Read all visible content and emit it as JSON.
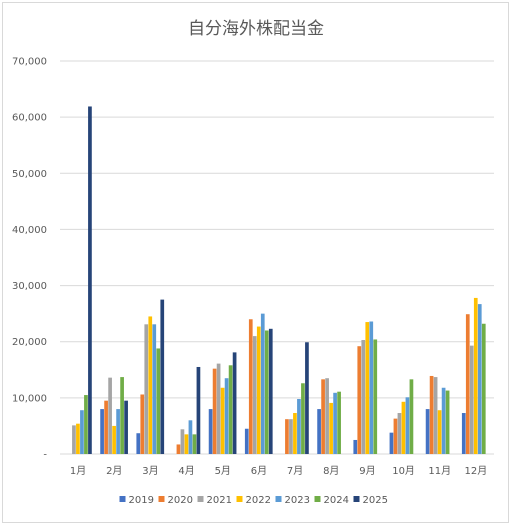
{
  "chart_data": {
    "type": "bar",
    "title": "自分海外株配当金",
    "xlabel": "",
    "ylabel": "",
    "ylim": [
      0,
      70000
    ],
    "yticks": [
      0,
      10000,
      20000,
      30000,
      40000,
      50000,
      60000,
      70000
    ],
    "ytick_labels": [
      "-",
      "10,000",
      "20,000",
      "30,000",
      "40,000",
      "50,000",
      "60,000",
      "70,000"
    ],
    "grid": true,
    "legend_position": "bottom",
    "categories": [
      "1月",
      "2月",
      "3月",
      "4月",
      "5月",
      "6月",
      "7月",
      "8月",
      "9月",
      "10月",
      "11月",
      "12月"
    ],
    "series": [
      {
        "name": "2019",
        "color": "#4472c4",
        "values": [
          0,
          8000,
          3700,
          0,
          8000,
          4500,
          0,
          8000,
          2500,
          3800,
          8000,
          7300
        ]
      },
      {
        "name": "2020",
        "color": "#ed7d31",
        "values": [
          0,
          9500,
          10600,
          1700,
          15200,
          24000,
          6200,
          13300,
          19200,
          6300,
          13900,
          24900
        ]
      },
      {
        "name": "2021",
        "color": "#a5a5a5",
        "values": [
          5100,
          13600,
          23100,
          4400,
          16100,
          21000,
          6200,
          13500,
          20300,
          7300,
          13700,
          19300
        ]
      },
      {
        "name": "2022",
        "color": "#ffc000",
        "values": [
          5400,
          5000,
          24500,
          3500,
          11800,
          22700,
          7300,
          9100,
          23500,
          9300,
          7800,
          27800
        ]
      },
      {
        "name": "2023",
        "color": "#5b9bd5",
        "values": [
          7800,
          8000,
          23100,
          6000,
          13500,
          25000,
          9800,
          10900,
          23600,
          10100,
          11800,
          26700
        ]
      },
      {
        "name": "2024",
        "color": "#70ad47",
        "values": [
          10500,
          13700,
          18800,
          3500,
          15800,
          22000,
          12600,
          11100,
          20400,
          13300,
          11300,
          23200
        ]
      },
      {
        "name": "2025",
        "color": "#264478",
        "values": [
          61900,
          9500,
          27500,
          15500,
          18100,
          22300,
          19900,
          0,
          0,
          0,
          0,
          0
        ]
      }
    ]
  }
}
